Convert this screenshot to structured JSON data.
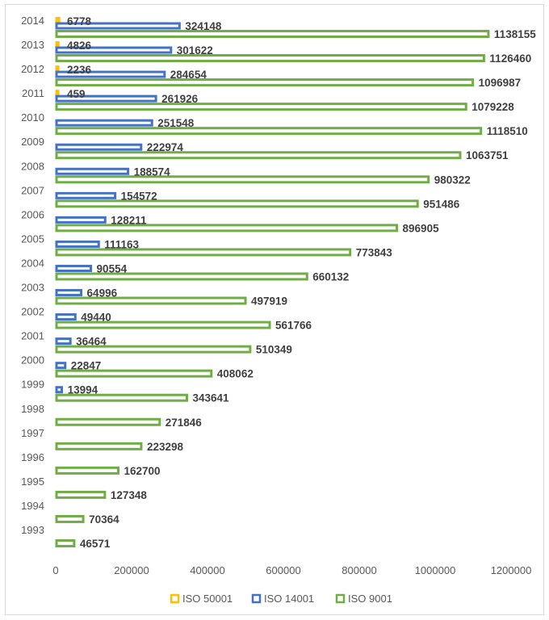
{
  "chart_data": {
    "type": "bar",
    "orientation": "horizontal",
    "categories": [
      "1993",
      "1994",
      "1995",
      "1996",
      "1997",
      "1998",
      "1999",
      "2000",
      "2001",
      "2002",
      "2003",
      "2004",
      "2005",
      "2006",
      "2007",
      "2008",
      "2009",
      "2010",
      "2011",
      "2012",
      "2013",
      "2014"
    ],
    "series": [
      {
        "name": "ISO 50001",
        "color": "#ffc000",
        "values": [
          null,
          null,
          null,
          null,
          null,
          null,
          null,
          null,
          null,
          null,
          null,
          null,
          null,
          null,
          null,
          null,
          null,
          null,
          459,
          2236,
          4826,
          6778
        ]
      },
      {
        "name": "ISO 14001",
        "color": "#4472c4",
        "values": [
          null,
          null,
          null,
          null,
          null,
          null,
          13994,
          22847,
          36464,
          49440,
          64996,
          90554,
          111163,
          128211,
          154572,
          188574,
          222974,
          251548,
          261926,
          284654,
          301622,
          324148
        ]
      },
      {
        "name": "ISO 9001",
        "color": "#70ad47",
        "values": [
          46571,
          70364,
          127348,
          162700,
          223298,
          271846,
          343641,
          408062,
          510349,
          561766,
          497919,
          660132,
          773843,
          896905,
          951486,
          980322,
          1063751,
          1118510,
          1079228,
          1096987,
          1126460,
          1138155
        ]
      }
    ],
    "x_ticks": [
      "0",
      "200000",
      "400000",
      "600000",
      "800000",
      "1000000",
      "1200000"
    ],
    "xlim": [
      0,
      1200000
    ],
    "grid": false,
    "legend": "bottom",
    "title": "",
    "xlabel": "",
    "ylabel": ""
  }
}
